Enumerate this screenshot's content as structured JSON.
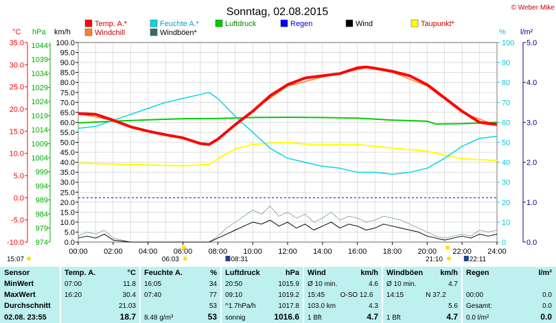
{
  "title": "Sonntag, 02.08.2015",
  "credit": "© Weber Mike",
  "units": {
    "temp": "°C",
    "pressure": "hPa",
    "wind": "km/h",
    "humidity": "%",
    "rain": "l/m²"
  },
  "legend": [
    {
      "label": "Temp. A.*",
      "color": "#ff0000"
    },
    {
      "label": "Windchill",
      "color": "#ff7f27"
    },
    {
      "label": "Feuchte A.*",
      "color": "#00d8e8"
    },
    {
      "label": "Windböen*",
      "color": "#356b6b"
    },
    {
      "label": "Luftdruck",
      "color": "#00cc00"
    },
    {
      "label": "Regen",
      "color": "#0000ff"
    },
    {
      "label": "Wind",
      "color": "#000000"
    },
    {
      "label": "Taupunkt*",
      "color": "#ffff00"
    }
  ],
  "chart_data": {
    "type": "line",
    "title": "Sonntag, 02.08.2015",
    "x_ticks": [
      "00:00",
      "02:00",
      "04:00",
      "06:00",
      "08:00",
      "10:00",
      "12:00",
      "14:00",
      "16:00",
      "18:00",
      "20:00",
      "22:00",
      "24:00"
    ],
    "axes": {
      "temp_c": {
        "min": -10,
        "max": 35,
        "ticks": [
          "35.0",
          "30.0",
          "25.0",
          "20.0",
          "15.0",
          "10.0",
          "5.0",
          "0.0",
          "-5.0",
          "-10.0"
        ]
      },
      "pressure_hpa": {
        "min": 974,
        "max": 1045,
        "ticks": [
          "1044",
          "1039",
          "1034",
          "1029",
          "1024",
          "1019",
          "1014",
          "1009",
          "1004",
          "999",
          "994",
          "989",
          "984",
          "979",
          "974"
        ]
      },
      "wind_kmh": {
        "min": 0,
        "max": 100,
        "ticks": [
          "100.0",
          "95.0",
          "90.0",
          "85.0",
          "80.0",
          "75.0",
          "70.0",
          "65.0",
          "60.0",
          "55.0",
          "50.0",
          "45.0",
          "40.0",
          "35.0",
          "30.0",
          "25.0",
          "20.0",
          "15.0",
          "10.0",
          "5.0",
          "0.0"
        ]
      },
      "humidity_pct": {
        "min": 0,
        "max": 100,
        "ticks": [
          "100",
          "90",
          "80",
          "70",
          "60",
          "50",
          "40",
          "30",
          "20",
          "10",
          "0"
        ]
      },
      "rain_lm2": {
        "min": 0,
        "max": 5,
        "ticks": [
          "5.0",
          "4.0",
          "3.0",
          "2.0",
          "1.0",
          "0.0"
        ]
      }
    },
    "series": [
      {
        "name": "Temp. A.*",
        "axis": "temp_c",
        "color": "#ff0000",
        "x": [
          0,
          1,
          2,
          3,
          4,
          5,
          6,
          7,
          7.5,
          8,
          9,
          10,
          11,
          12,
          13,
          14,
          15,
          16,
          16.5,
          17,
          18,
          19,
          20,
          21,
          22,
          23,
          24
        ],
        "y": [
          19.0,
          18.8,
          17.5,
          16.0,
          15.0,
          14.2,
          13.5,
          12.2,
          12.0,
          13.2,
          16.5,
          19.5,
          23.0,
          25.5,
          27.0,
          27.5,
          28.0,
          29.3,
          29.5,
          29.2,
          28.5,
          27.5,
          25.5,
          22.5,
          19.5,
          17.0,
          16.5
        ]
      },
      {
        "name": "Windchill",
        "axis": "temp_c",
        "color": "#ff7f27",
        "x": [
          0,
          2,
          4,
          6,
          7.5,
          8,
          10,
          12,
          14,
          16.5,
          18,
          20,
          22,
          24
        ],
        "y": [
          19.0,
          17.4,
          14.9,
          13.4,
          12.0,
          13.4,
          19.7,
          25.2,
          27.2,
          29.3,
          28.3,
          25.2,
          19.2,
          16.3
        ]
      },
      {
        "name": "Feuchte A.*",
        "axis": "humidity_pct",
        "color": "#00d8e8",
        "x": [
          0,
          1,
          2,
          3,
          4,
          5,
          6,
          7,
          7.5,
          8,
          9,
          10,
          11,
          12,
          13,
          14,
          15,
          16,
          17,
          18,
          19,
          20,
          21,
          22,
          23,
          24
        ],
        "y": [
          57,
          58,
          61,
          64,
          67,
          70,
          72,
          74,
          75,
          72,
          63,
          55,
          47,
          42,
          40,
          38,
          37,
          35,
          35,
          34,
          35,
          37,
          42,
          48,
          52,
          53
        ]
      },
      {
        "name": "Luftdruck",
        "axis": "pressure_hpa",
        "color": "#00cc00",
        "x": [
          0,
          2,
          4,
          6,
          8,
          10,
          12,
          14,
          16,
          18,
          20,
          20.5,
          22,
          24
        ],
        "y": [
          1016.4,
          1017.0,
          1017.5,
          1017.9,
          1018.0,
          1018.3,
          1018.4,
          1018.3,
          1018.1,
          1017.4,
          1017.0,
          1016.0,
          1016.1,
          1016.6
        ]
      },
      {
        "name": "Taupunkt*",
        "axis": "temp_c",
        "color": "#ffff00",
        "x": [
          0,
          2,
          4,
          6,
          7.5,
          8,
          9,
          10,
          11,
          12,
          13,
          14,
          16,
          18,
          20,
          21,
          22,
          23,
          24
        ],
        "y": [
          7.8,
          7.6,
          7.4,
          7.2,
          7.5,
          8.8,
          11.0,
          12.0,
          12.3,
          12.5,
          12.1,
          12.0,
          12.0,
          11.2,
          10.5,
          9.6,
          8.8,
          8.6,
          8.4
        ]
      },
      {
        "name": "Wind",
        "axis": "wind_kmh",
        "color": "#000000",
        "x": [
          0,
          0.5,
          1,
          1.5,
          2,
          3,
          4,
          5,
          6,
          7,
          7.5,
          8,
          8.5,
          9,
          9.5,
          10,
          10.5,
          11,
          11.5,
          12,
          12.5,
          13,
          13.5,
          14,
          14.5,
          15,
          15.5,
          16,
          16.5,
          17,
          17.5,
          18,
          18.5,
          19,
          19.5,
          20,
          20.5,
          21,
          21.5,
          22,
          22.5,
          23,
          23.5,
          24
        ],
        "y": [
          2,
          3,
          2,
          4,
          1,
          0,
          0,
          0,
          0,
          0,
          0,
          2,
          4,
          6,
          8,
          10,
          9,
          11,
          8,
          10,
          7,
          9,
          6,
          8,
          10,
          7,
          9,
          8,
          6,
          7,
          9,
          8,
          7,
          6,
          5,
          3,
          2,
          1,
          2,
          3,
          2,
          4,
          3,
          4
        ]
      },
      {
        "name": "Windböen*",
        "axis": "wind_kmh",
        "color": "#356b6b",
        "x": [
          0,
          0.5,
          1,
          1.5,
          2,
          3,
          4,
          5,
          6,
          7,
          7.5,
          8,
          8.5,
          9,
          9.5,
          10,
          10.5,
          11,
          11.5,
          12,
          12.5,
          13,
          13.5,
          14,
          14.5,
          15,
          15.5,
          16,
          16.5,
          17,
          17.5,
          18,
          18.5,
          19,
          19.5,
          20,
          20.5,
          21,
          21.5,
          22,
          22.5,
          23,
          23.5,
          24
        ],
        "y": [
          3,
          5,
          4,
          6,
          2,
          0,
          0,
          0,
          0,
          0,
          0,
          3,
          7,
          10,
          13,
          16,
          14,
          18,
          13,
          15,
          12,
          14,
          10,
          12,
          15,
          11,
          13,
          12,
          10,
          11,
          13,
          12,
          11,
          9,
          7,
          5,
          3,
          2,
          3,
          4,
          3,
          6,
          5,
          6
        ]
      }
    ],
    "baselines": [
      {
        "name": "0 °C",
        "axis": "temp_c",
        "value": 0,
        "color": "#0000ff"
      }
    ]
  },
  "sun_markers": {
    "left_time": "15:07",
    "sunrise": "06:03",
    "moonset": "08:31",
    "sunset": "21:10",
    "moonrise": "22:11"
  },
  "table": {
    "headers": [
      {
        "name": "Sensor",
        "unit": ""
      },
      {
        "name": "Temp. A.",
        "unit": "°C"
      },
      {
        "name": "Feuchte A.",
        "unit": "%"
      },
      {
        "name": "Luftdruck",
        "unit": "hPa"
      },
      {
        "name": "Wind",
        "unit": "km/h"
      },
      {
        "name": "Windböen",
        "unit": "km/h"
      },
      {
        "name": "Regen",
        "unit": "l/m²"
      }
    ],
    "rows": [
      {
        "label": "MinWert",
        "cells": [
          [
            "07:00",
            "11.8"
          ],
          [
            "16:05",
            "34"
          ],
          [
            "20:50",
            "1015.9"
          ],
          [
            "Ø 10 min.",
            "",
            "4.6"
          ],
          [
            "Ø 10 min.",
            "",
            "4.7"
          ],
          [
            "",
            ""
          ]
        ]
      },
      {
        "label": "MaxWert",
        "cells": [
          [
            "16:20",
            "30.4"
          ],
          [
            "07:40",
            "77"
          ],
          [
            "09:10",
            "1019.2"
          ],
          [
            "15:45",
            "O-SO 12.6",
            ""
          ],
          [
            "14:15",
            "N 37.2",
            ""
          ],
          [
            "00:00",
            "0.0"
          ]
        ]
      },
      {
        "label": "Durchschnitt",
        "cells": [
          [
            "",
            "21.03"
          ],
          [
            "",
            "53"
          ],
          [
            "^1.7hPa/h",
            "1017.8"
          ],
          [
            "103.0 km",
            "",
            "4.3"
          ],
          [
            "",
            "",
            "5.6"
          ],
          [
            "Gesamt:",
            "0.0"
          ]
        ]
      },
      {
        "label": "02.08.  23:55",
        "cells": [
          [
            "",
            "18.7"
          ],
          [
            "8.48 g/m³",
            "53"
          ],
          [
            "sonnig",
            "1016.6"
          ],
          [
            "1 Bft",
            "",
            "4.7"
          ],
          [
            "1 Bft",
            "",
            "4.7"
          ],
          [
            "0.0 l/m²",
            "0.0"
          ]
        ]
      }
    ]
  }
}
